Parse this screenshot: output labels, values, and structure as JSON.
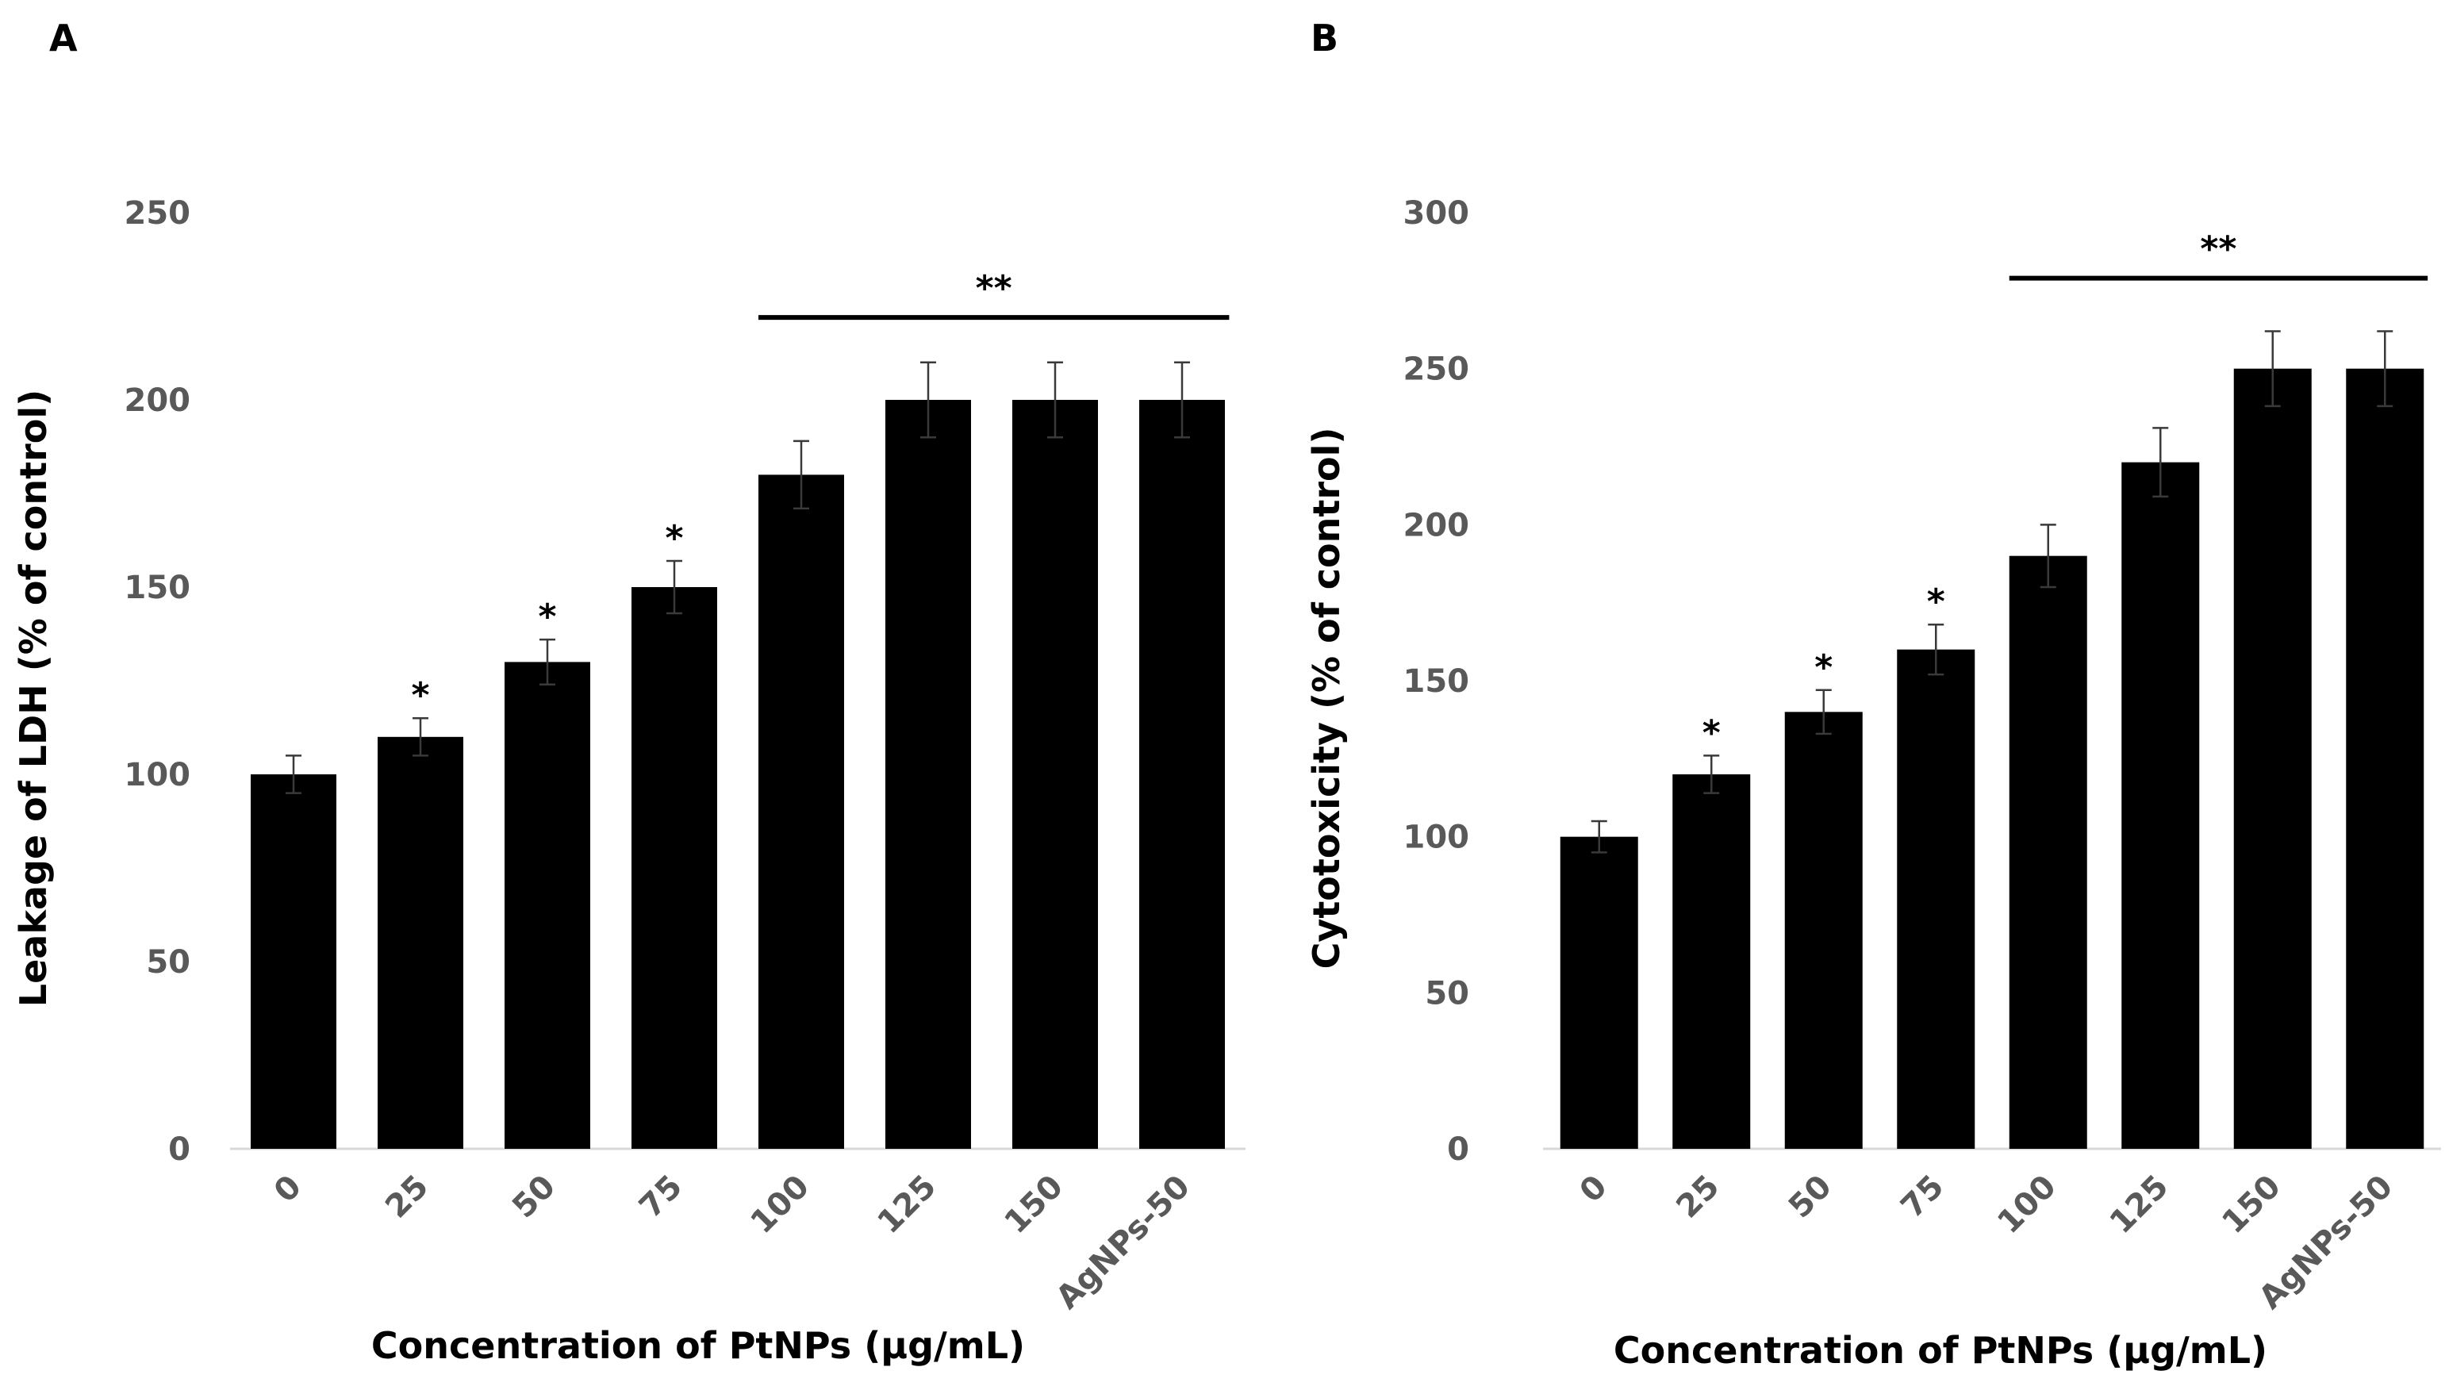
{
  "chart_data": [
    {
      "panel": "A",
      "type": "bar",
      "title": "",
      "categories": [
        "0",
        "25",
        "50",
        "75",
        "100",
        "125",
        "150",
        "AgNPs-50"
      ],
      "values": [
        100,
        110,
        130,
        150,
        180,
        200,
        200,
        200
      ],
      "errors": [
        5,
        5,
        6,
        7,
        9,
        10,
        10,
        10
      ],
      "markers": [
        "",
        "*",
        "*",
        "*",
        "",
        "",
        "",
        ""
      ],
      "ylim": [
        0,
        250
      ],
      "yticks": [
        "0",
        "50",
        "100",
        "150",
        "200",
        "250"
      ],
      "ylabel": "Leakage of LDH (% of control)",
      "xlabel": "Concentration of PtNPs (μg/mL)",
      "bracket": {
        "label": "**",
        "from_category": "100",
        "to_category": "AgNPs-50",
        "level": 222
      },
      "bar_color": "#000000",
      "grid": false
    },
    {
      "panel": "B",
      "type": "bar",
      "title": "",
      "categories": [
        "0",
        "25",
        "50",
        "75",
        "100",
        "125",
        "150",
        "AgNPs-50"
      ],
      "values": [
        100,
        120,
        140,
        160,
        190,
        220,
        250,
        250
      ],
      "errors": [
        5,
        6,
        7,
        8,
        10,
        11,
        12,
        12
      ],
      "markers": [
        "",
        "*",
        "*",
        "*",
        "",
        "",
        "",
        ""
      ],
      "ylim": [
        0,
        300
      ],
      "yticks": [
        "0",
        "50",
        "100",
        "150",
        "200",
        "250",
        "300"
      ],
      "ylabel": "Cytotoxicity (% of control)",
      "xlabel": "Concentration of PtNPs (μg/mL)",
      "bracket": {
        "label": "**",
        "from_category": "100",
        "to_category": "AgNPs-50",
        "level": 279
      },
      "bar_color": "#000000",
      "grid": false
    }
  ]
}
